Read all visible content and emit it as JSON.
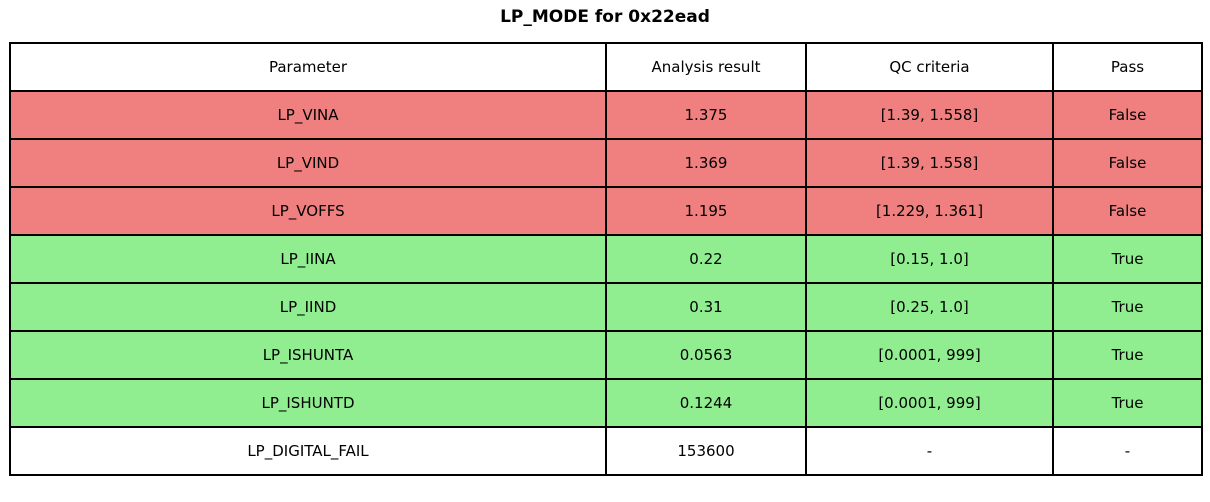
{
  "title": "LP_MODE for 0x22ead",
  "table": {
    "headers": {
      "parameter": "Parameter",
      "result": "Analysis result",
      "criteria": "QC criteria",
      "pass": "Pass"
    },
    "rows": [
      {
        "parameter": "LP_VINA",
        "result": "1.375",
        "criteria": "[1.39, 1.558]",
        "pass": "False",
        "status": "fail"
      },
      {
        "parameter": "LP_VIND",
        "result": "1.369",
        "criteria": "[1.39, 1.558]",
        "pass": "False",
        "status": "fail"
      },
      {
        "parameter": "LP_VOFFS",
        "result": "1.195",
        "criteria": "[1.229, 1.361]",
        "pass": "False",
        "status": "fail"
      },
      {
        "parameter": "LP_IINA",
        "result": "0.22",
        "criteria": "[0.15, 1.0]",
        "pass": "True",
        "status": "pass"
      },
      {
        "parameter": "LP_IIND",
        "result": "0.31",
        "criteria": "[0.25, 1.0]",
        "pass": "True",
        "status": "pass"
      },
      {
        "parameter": "LP_ISHUNTA",
        "result": "0.0563",
        "criteria": "[0.0001, 999]",
        "pass": "True",
        "status": "pass"
      },
      {
        "parameter": "LP_ISHUNTD",
        "result": "0.1244",
        "criteria": "[0.0001, 999]",
        "pass": "True",
        "status": "pass"
      },
      {
        "parameter": "LP_DIGITAL_FAIL",
        "result": "153600",
        "criteria": "-",
        "pass": "-",
        "status": "neutral"
      }
    ]
  },
  "colors": {
    "fail_row": "#f08080",
    "pass_row": "#90ee90",
    "neutral_row": "#ffffff",
    "border": "#000000"
  },
  "chart_data": {
    "type": "table",
    "title": "LP_MODE for 0x22ead",
    "columns": [
      "Parameter",
      "Analysis result",
      "QC criteria",
      "Pass"
    ],
    "rows": [
      [
        "LP_VINA",
        1.375,
        "[1.39, 1.558]",
        false
      ],
      [
        "LP_VIND",
        1.369,
        "[1.39, 1.558]",
        false
      ],
      [
        "LP_VOFFS",
        1.195,
        "[1.229, 1.361]",
        false
      ],
      [
        "LP_IINA",
        0.22,
        "[0.15, 1.0]",
        true
      ],
      [
        "LP_IIND",
        0.31,
        "[0.25, 1.0]",
        true
      ],
      [
        "LP_ISHUNTA",
        0.0563,
        "[0.0001, 999]",
        true
      ],
      [
        "LP_ISHUNTD",
        0.1244,
        "[0.0001, 999]",
        true
      ],
      [
        "LP_DIGITAL_FAIL",
        153600,
        null,
        null
      ]
    ],
    "layout_hints": {
      "row_color_by_pass": {
        "false": "#f08080",
        "true": "#90ee90",
        "null": "#ffffff"
      },
      "cell_text_align": "center",
      "grid": true
    }
  }
}
